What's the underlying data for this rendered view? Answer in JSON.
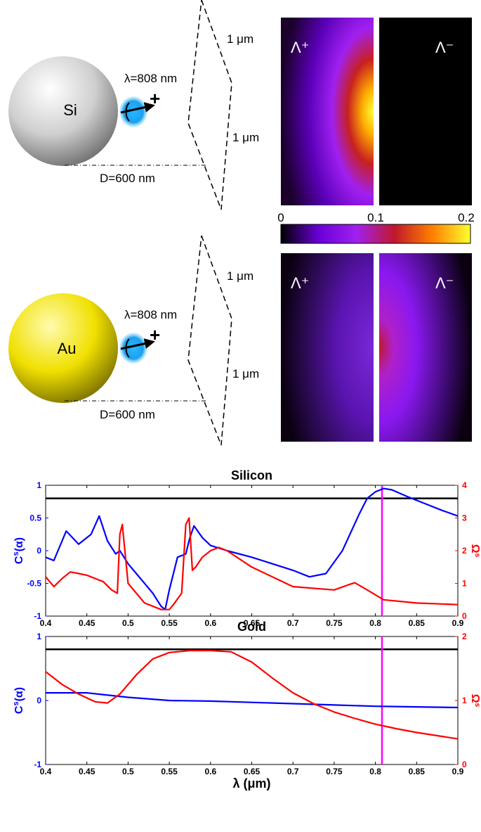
{
  "panels": [
    {
      "material": "Si",
      "sphere_colors": [
        "#ffffff",
        "#cfcfcf",
        "#6e6e6e"
      ],
      "wavelength_label": "λ=808 nm",
      "plus_sign": "+",
      "distance_label": "D=600 nm",
      "plane_label_top": "1 μm",
      "plane_label_bottom": "1 μm",
      "map_label_plus": "Λ⁺",
      "map_label_minus": "Λ⁻",
      "map_plus_peak": 0.2,
      "map_minus_peak": 0.0
    },
    {
      "material": "Au",
      "sphere_colors": [
        "#fffbb0",
        "#f0e000",
        "#7a7000"
      ],
      "wavelength_label": "λ=808 nm",
      "plus_sign": "+",
      "distance_label": "D=600 nm",
      "plane_label_top": "1 μm",
      "plane_label_bottom": "1 μm",
      "map_label_plus": "Λ⁺",
      "map_label_minus": "Λ⁻",
      "map_plus_peak": 0.06,
      "map_minus_peak": 0.12
    }
  ],
  "colorbar": {
    "ticks": [
      "0",
      "0.1",
      "0.2"
    ],
    "stops": [
      "#000000",
      "#6a00d8",
      "#a020f0",
      "#c0182c",
      "#ff8000",
      "#ffff30"
    ]
  },
  "chart_data": [
    {
      "type": "line",
      "title": "Silicon",
      "xlabel": "",
      "ylabel_left": "C^s(α)",
      "ylabel_right": "Ω^s",
      "xlim": [
        0.4,
        0.9
      ],
      "ylim_left": [
        -1,
        1
      ],
      "ylim_right": [
        0,
        4
      ],
      "xticks": [
        "0.4",
        "0.45",
        "0.5",
        "0.55",
        "0.6",
        "0.65",
        "0.7",
        "0.75",
        "0.8",
        "0.85",
        "0.9"
      ],
      "yticks_left": [
        "1",
        "0.5",
        "0",
        "-0.5",
        "-1"
      ],
      "yticks_right": [
        "4",
        "3",
        "2",
        "1",
        "0"
      ],
      "reference_line": 0.8,
      "marker_x": 0.808,
      "colors": {
        "left": "#0000ff",
        "right": "#ff0000",
        "reference": "#000000",
        "marker": "#ff00ff"
      },
      "series": [
        {
          "axis": "left",
          "x": [
            0.4,
            0.41,
            0.425,
            0.44,
            0.455,
            0.465,
            0.475,
            0.485,
            0.49,
            0.5,
            0.51,
            0.52,
            0.53,
            0.54,
            0.545,
            0.55,
            0.56,
            0.57,
            0.575,
            0.58,
            0.59,
            0.6,
            0.62,
            0.65,
            0.7,
            0.72,
            0.74,
            0.76,
            0.78,
            0.79,
            0.8,
            0.81,
            0.82,
            0.84,
            0.86,
            0.88,
            0.9
          ],
          "values": [
            -0.1,
            -0.15,
            0.3,
            0.1,
            0.25,
            0.53,
            0.15,
            -0.05,
            0.0,
            -0.2,
            -0.35,
            -0.5,
            -0.65,
            -0.85,
            -0.9,
            -0.6,
            -0.1,
            -0.05,
            0.2,
            0.38,
            0.2,
            0.08,
            0.0,
            -0.1,
            -0.3,
            -0.4,
            -0.35,
            0.0,
            0.55,
            0.8,
            0.9,
            0.95,
            0.93,
            0.82,
            0.72,
            0.62,
            0.53
          ]
        },
        {
          "axis": "right",
          "x": [
            0.4,
            0.41,
            0.42,
            0.43,
            0.44,
            0.45,
            0.46,
            0.47,
            0.48,
            0.487,
            0.49,
            0.493,
            0.5,
            0.52,
            0.54,
            0.55,
            0.555,
            0.565,
            0.57,
            0.574,
            0.578,
            0.582,
            0.59,
            0.6,
            0.61,
            0.62,
            0.65,
            0.7,
            0.75,
            0.77,
            0.775,
            0.79,
            0.81,
            0.85,
            0.9
          ],
          "values": [
            1.2,
            0.9,
            1.15,
            1.35,
            1.3,
            1.25,
            1.15,
            1.05,
            0.8,
            0.7,
            2.5,
            2.8,
            1.0,
            0.4,
            0.2,
            0.2,
            0.35,
            0.7,
            2.8,
            3.0,
            1.4,
            1.5,
            1.8,
            2.0,
            2.1,
            2.0,
            1.5,
            0.9,
            0.8,
            0.98,
            1.02,
            0.8,
            0.5,
            0.4,
            0.35
          ]
        }
      ]
    },
    {
      "type": "line",
      "title": "Gold",
      "xlabel": "λ (μm)",
      "ylabel_left": "C^s(α)",
      "ylabel_right": "Ω^s",
      "xlim": [
        0.4,
        0.9
      ],
      "ylim_left": [
        -1,
        1
      ],
      "ylim_right": [
        0,
        2
      ],
      "xticks": [
        "0.4",
        "0.45",
        "0.5",
        "0.55",
        "0.6",
        "0.65",
        "0.7",
        "0.75",
        "0.8",
        "0.85",
        "0.9"
      ],
      "yticks_left": [
        "1",
        "0",
        "-1"
      ],
      "yticks_right": [
        "2",
        "1",
        "0"
      ],
      "reference_line": 0.8,
      "marker_x": 0.808,
      "colors": {
        "left": "#0000ff",
        "right": "#ff0000",
        "reference": "#000000",
        "marker": "#ff00ff"
      },
      "series": [
        {
          "axis": "left",
          "x": [
            0.4,
            0.45,
            0.5,
            0.55,
            0.6,
            0.65,
            0.7,
            0.75,
            0.8,
            0.85,
            0.9
          ],
          "values": [
            0.12,
            0.12,
            0.05,
            0.0,
            -0.01,
            -0.03,
            -0.05,
            -0.07,
            -0.09,
            -0.1,
            -0.11
          ]
        },
        {
          "axis": "right",
          "x": [
            0.4,
            0.42,
            0.44,
            0.46,
            0.475,
            0.49,
            0.51,
            0.53,
            0.55,
            0.575,
            0.6,
            0.625,
            0.65,
            0.675,
            0.7,
            0.725,
            0.75,
            0.775,
            0.8,
            0.825,
            0.85,
            0.875,
            0.9
          ],
          "values": [
            1.45,
            1.25,
            1.1,
            0.98,
            0.96,
            1.1,
            1.4,
            1.65,
            1.75,
            1.78,
            1.78,
            1.76,
            1.6,
            1.35,
            1.12,
            0.95,
            0.82,
            0.72,
            0.63,
            0.56,
            0.5,
            0.45,
            0.4
          ]
        }
      ]
    }
  ]
}
